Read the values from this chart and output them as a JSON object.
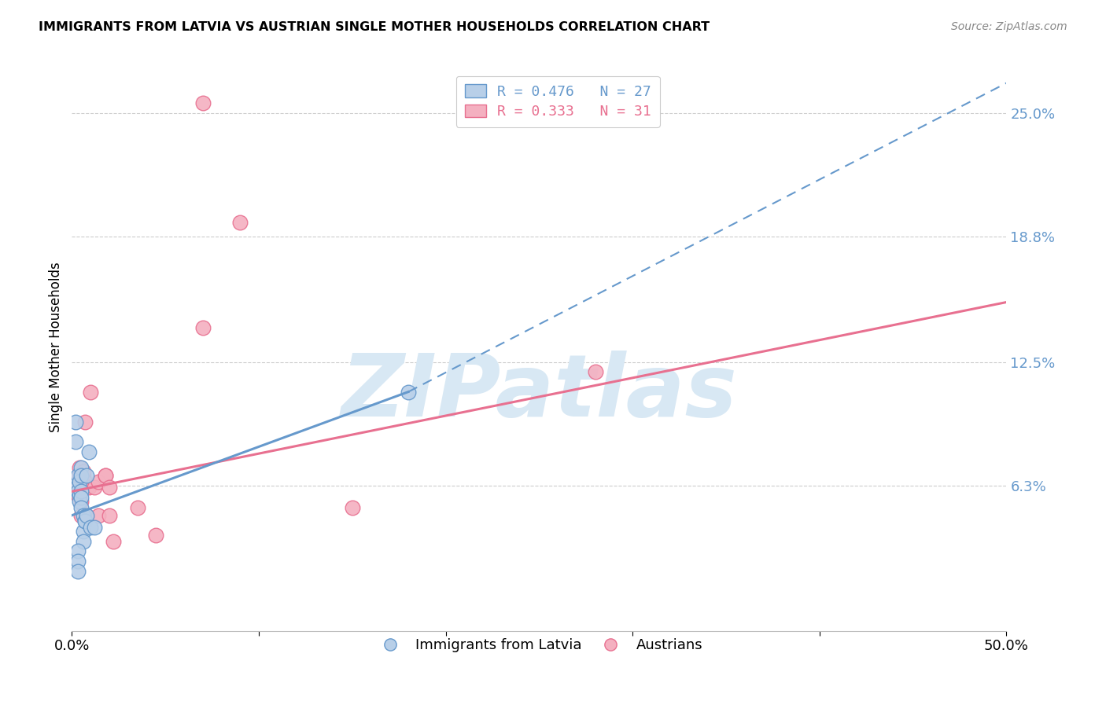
{
  "title": "IMMIGRANTS FROM LATVIA VS AUSTRIAN SINGLE MOTHER HOUSEHOLDS CORRELATION CHART",
  "source": "Source: ZipAtlas.com",
  "ylabel": "Single Mother Households",
  "xlim": [
    0.0,
    0.5
  ],
  "ylim": [
    -0.01,
    0.275
  ],
  "ytick_positions": [
    0.063,
    0.125,
    0.188,
    0.25
  ],
  "ytick_labels": [
    "6.3%",
    "12.5%",
    "18.8%",
    "25.0%"
  ],
  "blue_scatter": [
    [
      0.002,
      0.095
    ],
    [
      0.002,
      0.085
    ],
    [
      0.003,
      0.063
    ],
    [
      0.003,
      0.068
    ],
    [
      0.003,
      0.06
    ],
    [
      0.004,
      0.065
    ],
    [
      0.004,
      0.058
    ],
    [
      0.004,
      0.055
    ],
    [
      0.005,
      0.06
    ],
    [
      0.005,
      0.057
    ],
    [
      0.005,
      0.052
    ],
    [
      0.005,
      0.072
    ],
    [
      0.005,
      0.068
    ],
    [
      0.006,
      0.048
    ],
    [
      0.006,
      0.04
    ],
    [
      0.006,
      0.035
    ],
    [
      0.007,
      0.045
    ],
    [
      0.007,
      0.045
    ],
    [
      0.008,
      0.068
    ],
    [
      0.008,
      0.048
    ],
    [
      0.009,
      0.08
    ],
    [
      0.01,
      0.042
    ],
    [
      0.012,
      0.042
    ],
    [
      0.003,
      0.03
    ],
    [
      0.003,
      0.025
    ],
    [
      0.003,
      0.02
    ],
    [
      0.18,
      0.11
    ]
  ],
  "pink_scatter": [
    [
      0.003,
      0.062
    ],
    [
      0.003,
      0.058
    ],
    [
      0.004,
      0.068
    ],
    [
      0.004,
      0.072
    ],
    [
      0.005,
      0.06
    ],
    [
      0.005,
      0.055
    ],
    [
      0.005,
      0.048
    ],
    [
      0.006,
      0.068
    ],
    [
      0.006,
      0.07
    ],
    [
      0.006,
      0.065
    ],
    [
      0.007,
      0.065
    ],
    [
      0.007,
      0.095
    ],
    [
      0.008,
      0.062
    ],
    [
      0.008,
      0.048
    ],
    [
      0.009,
      0.062
    ],
    [
      0.01,
      0.11
    ],
    [
      0.012,
      0.062
    ],
    [
      0.014,
      0.048
    ],
    [
      0.014,
      0.065
    ],
    [
      0.018,
      0.068
    ],
    [
      0.018,
      0.068
    ],
    [
      0.02,
      0.062
    ],
    [
      0.02,
      0.048
    ],
    [
      0.022,
      0.035
    ],
    [
      0.035,
      0.052
    ],
    [
      0.045,
      0.038
    ],
    [
      0.07,
      0.142
    ],
    [
      0.09,
      0.195
    ],
    [
      0.15,
      0.052
    ],
    [
      0.28,
      0.12
    ],
    [
      0.07,
      0.255
    ]
  ],
  "blue_line_solid": {
    "x": [
      0.0,
      0.18
    ],
    "y": [
      0.048,
      0.11
    ]
  },
  "blue_line_dash": {
    "x": [
      0.18,
      0.5
    ],
    "y": [
      0.11,
      0.265
    ]
  },
  "pink_line": {
    "x": [
      0.0,
      0.5
    ],
    "y": [
      0.06,
      0.155
    ]
  },
  "blue_color": "#6699cc",
  "blue_fill": "#b8cfe8",
  "pink_color": "#e87090",
  "pink_fill": "#f4b0c0",
  "watermark_text": "ZIPatlas",
  "watermark_color": "#d8e8f4",
  "grid_color": "#cccccc",
  "background_color": "#ffffff",
  "legend_blue_label": "R = 0.476   N = 27",
  "legend_pink_label": "R = 0.333   N = 31",
  "bottom_legend_blue": "Immigrants from Latvia",
  "bottom_legend_pink": "Austrians"
}
